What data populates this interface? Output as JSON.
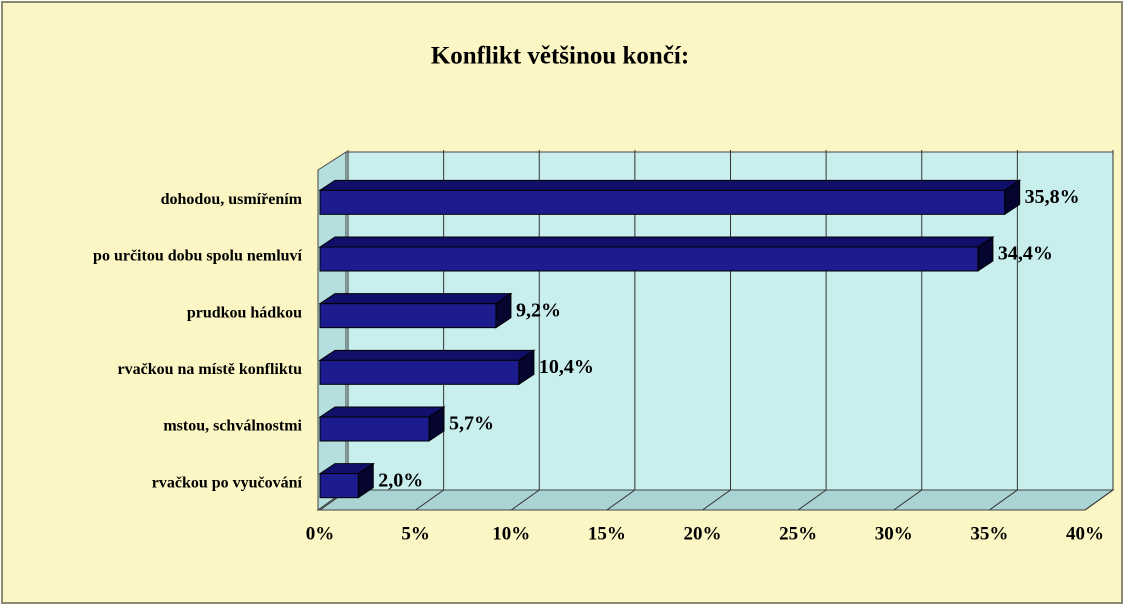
{
  "chart_data": {
    "type": "bar",
    "orientation": "horizontal",
    "title": "Konflikt většinou končí:",
    "categories": [
      "dohodou, usmířením",
      "po určitou dobu spolu nemluví",
      "prudkou hádkou",
      "rvačkou na místě konfliktu",
      "mstou, schválnostmi",
      "rvačkou po vyučování"
    ],
    "values": [
      35.8,
      34.4,
      9.2,
      10.4,
      5.7,
      2.0
    ],
    "value_labels": [
      "35,8%",
      "34,4%",
      "9,2%",
      "10,4%",
      "5,7%",
      "2,0%"
    ],
    "color": "#1c1c8e",
    "xlim": [
      0,
      40
    ],
    "xticks": [
      {
        "value": 0,
        "label": "0%"
      },
      {
        "value": 5,
        "label": "5%"
      },
      {
        "value": 10,
        "label": "10%"
      },
      {
        "value": 15,
        "label": "15%"
      },
      {
        "value": 20,
        "label": "20%"
      },
      {
        "value": 25,
        "label": "25%"
      },
      {
        "value": 30,
        "label": "30%"
      },
      {
        "value": 35,
        "label": "35%"
      },
      {
        "value": 40,
        "label": "40%"
      }
    ],
    "grid": true
  }
}
